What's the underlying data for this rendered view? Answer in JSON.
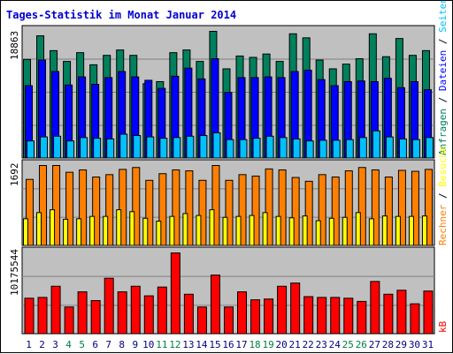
{
  "title": "Tages-Statistik im Monat Januar 2014",
  "colors": {
    "title": "#0000cc",
    "panel_bg": "#c0c0c0",
    "grid": "#808080",
    "anfragen": "#00805c",
    "dateien": "#0000ff",
    "seiten": "#00c0ff",
    "besuche": "#ff8000",
    "rechner": "#ffff00",
    "kb": "#ff0000",
    "weekend_label": "#008040",
    "weekday_label": "#000080"
  },
  "chart_data": [
    {
      "type": "bar",
      "panel": "top",
      "ymax": 18863,
      "ymax_label": "18863",
      "categories": [
        "1",
        "2",
        "3",
        "4",
        "5",
        "6",
        "7",
        "8",
        "9",
        "10",
        "11",
        "12",
        "13",
        "14",
        "15",
        "16",
        "17",
        "18",
        "19",
        "20",
        "21",
        "22",
        "23",
        "24",
        "25",
        "26",
        "27",
        "28",
        "29",
        "30",
        "31"
      ],
      "legend": [
        {
          "label": "Anfragen",
          "color": "#00805c"
        },
        {
          "label": " / ",
          "color": "#000000"
        },
        {
          "label": "Dateien",
          "color": "#0000ff"
        },
        {
          "label": " / ",
          "color": "#000000"
        },
        {
          "label": "Seiten",
          "color": "#00c0ff"
        }
      ],
      "series": [
        {
          "name": "Anfragen",
          "values": [
            14700,
            18200,
            16000,
            14400,
            15700,
            13900,
            15300,
            16100,
            15300,
            11100,
            11400,
            15700,
            16100,
            14400,
            18863,
            13300,
            15200,
            15000,
            15500,
            14400,
            18500,
            17900,
            14600,
            13300,
            14000,
            14800,
            18500,
            15100,
            17800,
            15300,
            16000
          ]
        },
        {
          "name": "Dateien",
          "values": [
            10800,
            14600,
            12900,
            10900,
            12100,
            11000,
            12000,
            12900,
            12100,
            11600,
            10400,
            12200,
            13400,
            11800,
            14800,
            9800,
            12000,
            12000,
            12100,
            12000,
            12900,
            13100,
            11700,
            10800,
            11400,
            11500,
            11400,
            11900,
            10500,
            11400,
            10200
          ]
        },
        {
          "name": "Seiten",
          "values": [
            2600,
            3200,
            3300,
            2600,
            3100,
            3000,
            2900,
            3600,
            3400,
            3200,
            3000,
            3100,
            3300,
            3400,
            3800,
            2800,
            2800,
            3000,
            3300,
            3100,
            2900,
            2600,
            2700,
            2700,
            2800,
            3100,
            4100,
            3200,
            2900,
            2800,
            3100
          ]
        }
      ]
    },
    {
      "type": "bar",
      "panel": "middle",
      "ymax": 1692,
      "ymax_label": "1692",
      "legend": [
        {
          "label": "Rechner",
          "color": "#ff8000"
        },
        {
          "label": " / ",
          "color": "#000000"
        },
        {
          "label": "Besuche",
          "color": "#ffff00"
        }
      ],
      "series": [
        {
          "name": "Besuche",
          "values": [
            1400,
            1692,
            1692,
            1550,
            1600,
            1450,
            1500,
            1610,
            1650,
            1380,
            1520,
            1600,
            1580,
            1380,
            1692,
            1380,
            1500,
            1470,
            1620,
            1600,
            1440,
            1360,
            1500,
            1450,
            1580,
            1650,
            1600,
            1450,
            1590,
            1570,
            1610
          ]
        },
        {
          "name": "Rechner",
          "values": [
            570,
            700,
            760,
            560,
            570,
            620,
            620,
            760,
            720,
            580,
            520,
            620,
            680,
            640,
            760,
            600,
            620,
            640,
            700,
            620,
            590,
            630,
            530,
            580,
            600,
            700,
            570,
            630,
            620,
            620,
            630
          ]
        }
      ]
    },
    {
      "type": "bar",
      "panel": "bottom",
      "ymax": 10175544,
      "ymax_label": "10175544",
      "legend": [
        {
          "label": "kB",
          "color": "#ff0000"
        }
      ],
      "series": [
        {
          "name": "kB",
          "values": [
            4500000,
            4600000,
            6000000,
            3400000,
            5300000,
            4200000,
            7000000,
            5300000,
            6000000,
            4800000,
            5900000,
            10175544,
            5000000,
            3400000,
            7400000,
            3400000,
            5300000,
            4300000,
            4400000,
            6000000,
            6400000,
            4700000,
            4600000,
            4600000,
            4500000,
            4100000,
            6600000,
            5000000,
            5500000,
            3800000,
            5400000
          ]
        }
      ]
    }
  ],
  "day_labels": [
    {
      "label": "1",
      "weekend": false
    },
    {
      "label": "2",
      "weekend": false
    },
    {
      "label": "3",
      "weekend": false
    },
    {
      "label": "4",
      "weekend": true
    },
    {
      "label": "5",
      "weekend": true
    },
    {
      "label": "6",
      "weekend": false
    },
    {
      "label": "7",
      "weekend": false
    },
    {
      "label": "8",
      "weekend": false
    },
    {
      "label": "9",
      "weekend": false
    },
    {
      "label": "10",
      "weekend": false
    },
    {
      "label": "11",
      "weekend": true
    },
    {
      "label": "12",
      "weekend": true
    },
    {
      "label": "13",
      "weekend": false
    },
    {
      "label": "14",
      "weekend": false
    },
    {
      "label": "15",
      "weekend": false
    },
    {
      "label": "16",
      "weekend": false
    },
    {
      "label": "17",
      "weekend": false
    },
    {
      "label": "18",
      "weekend": true
    },
    {
      "label": "19",
      "weekend": true
    },
    {
      "label": "20",
      "weekend": false
    },
    {
      "label": "21",
      "weekend": false
    },
    {
      "label": "22",
      "weekend": false
    },
    {
      "label": "23",
      "weekend": false
    },
    {
      "label": "24",
      "weekend": false
    },
    {
      "label": "25",
      "weekend": true
    },
    {
      "label": "26",
      "weekend": true
    },
    {
      "label": "27",
      "weekend": false
    },
    {
      "label": "28",
      "weekend": false
    },
    {
      "label": "29",
      "weekend": false
    },
    {
      "label": "30",
      "weekend": false
    },
    {
      "label": "31",
      "weekend": false
    }
  ]
}
